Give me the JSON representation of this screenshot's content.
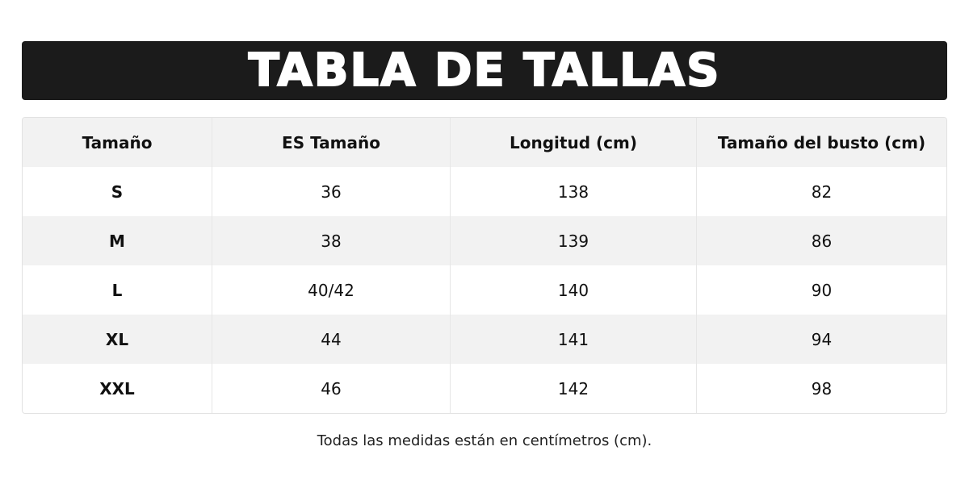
{
  "header": {
    "title": "TABLA DE TALLAS"
  },
  "table": {
    "columns": [
      "Tamaño",
      "ES Tamaño",
      "Longitud (cm)",
      "Tamaño del busto (cm)"
    ],
    "rows": [
      [
        "S",
        36,
        138,
        82
      ],
      [
        "M",
        38,
        139,
        86
      ],
      [
        "L",
        "40/42",
        140,
        90
      ],
      [
        "XL",
        44,
        141,
        94
      ],
      [
        "XXL",
        46,
        142,
        98
      ]
    ]
  },
  "footer": {
    "note": "Todas las medidas están en centímetros (cm)."
  }
}
